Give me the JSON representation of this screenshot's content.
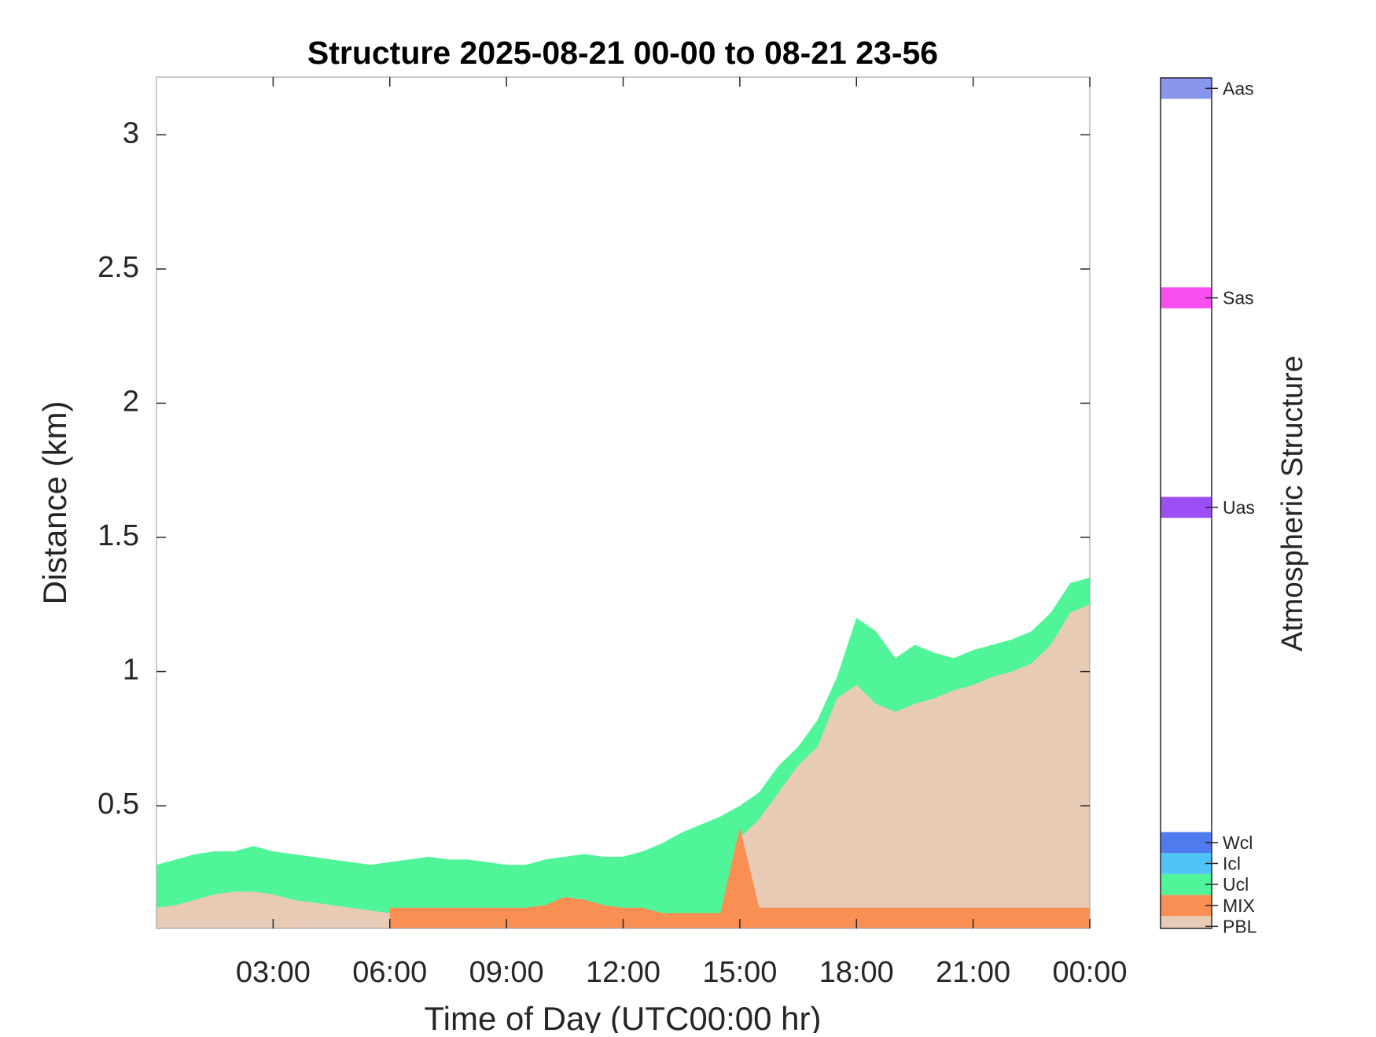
{
  "chart_data": {
    "type": "area",
    "title": "Structure 2025-08-21 00-00 to 08-21 23-56",
    "xlabel": "Time of Day (UTC00:00 hr)",
    "ylabel": "Distance (km)",
    "x": [
      0,
      0.5,
      1,
      1.5,
      2,
      2.5,
      3,
      3.5,
      4,
      4.5,
      5,
      5.5,
      6,
      6.5,
      7,
      7.5,
      8,
      8.5,
      9,
      9.5,
      10,
      10.5,
      11,
      11.5,
      12,
      12.5,
      13,
      13.5,
      14,
      14.5,
      15,
      15.5,
      16,
      16.5,
      17,
      17.5,
      18,
      18.5,
      19,
      19.5,
      20,
      20.5,
      21,
      21.5,
      22,
      22.5,
      23,
      23.5,
      24
    ],
    "series": [
      {
        "name": "Ucl",
        "color": "#50f59a",
        "values": [
          0.28,
          0.3,
          0.32,
          0.33,
          0.33,
          0.35,
          0.33,
          0.32,
          0.31,
          0.3,
          0.29,
          0.28,
          0.29,
          0.3,
          0.31,
          0.3,
          0.3,
          0.29,
          0.28,
          0.28,
          0.3,
          0.31,
          0.32,
          0.31,
          0.31,
          0.33,
          0.36,
          0.4,
          0.43,
          0.46,
          0.5,
          0.55,
          0.65,
          0.72,
          0.82,
          0.98,
          1.2,
          1.15,
          1.05,
          1.1,
          1.07,
          1.05,
          1.08,
          1.1,
          1.12,
          1.15,
          1.22,
          1.33,
          1.35
        ]
      },
      {
        "name": "PBL",
        "color": "#e8cbb5",
        "values": [
          0.12,
          0.13,
          0.15,
          0.17,
          0.18,
          0.18,
          0.17,
          0.15,
          0.14,
          0.13,
          0.12,
          0.11,
          0.1,
          0.1,
          0.1,
          0.1,
          0.1,
          0.1,
          0.1,
          0.1,
          0.1,
          0.1,
          0.1,
          0.1,
          0.1,
          0.1,
          0.1,
          0.1,
          0.1,
          0.1,
          0.38,
          0.45,
          0.55,
          0.65,
          0.72,
          0.9,
          0.95,
          0.88,
          0.85,
          0.88,
          0.9,
          0.93,
          0.95,
          0.98,
          1.0,
          1.03,
          1.1,
          1.22,
          1.25
        ]
      },
      {
        "name": "MIX",
        "color": "#f98f52",
        "values": [
          null,
          null,
          null,
          null,
          null,
          null,
          null,
          null,
          null,
          null,
          null,
          null,
          0.12,
          0.12,
          0.12,
          0.12,
          0.12,
          0.12,
          0.12,
          0.12,
          0.13,
          0.16,
          0.15,
          0.13,
          0.12,
          0.12,
          0.1,
          0.1,
          0.1,
          0.1,
          0.42,
          0.12,
          0.12,
          0.12,
          0.12,
          0.12,
          0.12,
          0.12,
          0.12,
          0.12,
          0.12,
          0.12,
          0.12,
          0.12,
          0.12,
          0.12,
          0.12,
          0.12,
          0.12
        ]
      }
    ],
    "xlim": [
      0,
      24
    ],
    "xticks": [
      {
        "value": 3,
        "label": "03:00"
      },
      {
        "value": 6,
        "label": "06:00"
      },
      {
        "value": 9,
        "label": "09:00"
      },
      {
        "value": 12,
        "label": "12:00"
      },
      {
        "value": 15,
        "label": "15:00"
      },
      {
        "value": 18,
        "label": "18:00"
      },
      {
        "value": 21,
        "label": "21:00"
      },
      {
        "value": 24,
        "label": "00:00"
      }
    ],
    "ylim": [
      0.043,
      3.215
    ],
    "yticks": [
      0.5,
      1,
      1.5,
      2,
      2.5,
      3
    ],
    "colorbar": {
      "label": "Atmospheric Structure",
      "clim": [
        -0.1,
        40.5
      ],
      "categories": [
        "PBL",
        "MIX",
        "Ucl",
        "Icl",
        "Wcl",
        "Uas",
        "Sas",
        "Aas"
      ],
      "values": [
        0,
        1,
        2,
        3,
        4,
        20,
        30,
        40
      ],
      "colors": [
        "#e8cbb5",
        "#f98f52",
        "#50f59a",
        "#52c3f7",
        "#4f7bef",
        "#9b4ff5",
        "#f94ff0",
        "#8896ee"
      ]
    }
  }
}
